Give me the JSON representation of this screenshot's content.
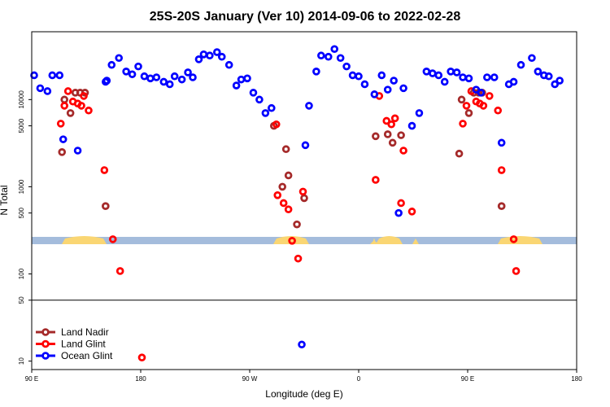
{
  "chart_data": {
    "type": "scatter",
    "title": "25S-20S January (Ver 10)   2014-09-06 to 2022-02-28",
    "xlabel": "Longitude (deg E)",
    "ylabel": "N Total",
    "x_ticks": [
      {
        "value": 90,
        "label": "90 E"
      },
      {
        "value": 180,
        "label": "180"
      },
      {
        "value": 270,
        "label": "90 W"
      },
      {
        "value": 360,
        "label": "0"
      },
      {
        "value": 450,
        "label": "90 E"
      },
      {
        "value": 540,
        "label": "180"
      }
    ],
    "y_ticks": [
      {
        "value": 10,
        "label": "10"
      },
      {
        "value": 50,
        "label": "50"
      },
      {
        "value": 100,
        "label": "100"
      },
      {
        "value": 500,
        "label": "500"
      },
      {
        "value": 1000,
        "label": "1000"
      },
      {
        "value": 5000,
        "label": "5000"
      },
      {
        "value": 10000,
        "label": "10000"
      }
    ],
    "xlim": [
      90,
      540
    ],
    "ylim": [
      8,
      60000
    ],
    "y_scale": "log",
    "reference_line": 50,
    "legend_position": "bottom-left",
    "series": [
      {
        "name": "Land Nadir",
        "color": "#a52a2a",
        "points": [
          [
            115,
            2500
          ],
          [
            117,
            10000
          ],
          [
            122,
            7000
          ],
          [
            126,
            12000
          ],
          [
            130,
            12000
          ],
          [
            134,
            12000
          ],
          [
            151,
            600
          ],
          [
            290,
            5000
          ],
          [
            297,
            1000
          ],
          [
            300,
            2700
          ],
          [
            302,
            1350
          ],
          [
            309,
            370
          ],
          [
            315,
            740
          ],
          [
            374,
            3800
          ],
          [
            384,
            4000
          ],
          [
            388,
            3200
          ],
          [
            395,
            3900
          ],
          [
            443,
            2400
          ],
          [
            445,
            10000
          ],
          [
            451,
            7000
          ],
          [
            455,
            12000
          ],
          [
            459,
            12000
          ],
          [
            462,
            12000
          ],
          [
            478,
            600
          ]
        ]
      },
      {
        "name": "Land Glint",
        "color": "#ff0000",
        "points": [
          [
            114,
            5300
          ],
          [
            117,
            8500
          ],
          [
            120,
            12500
          ],
          [
            124,
            9500
          ],
          [
            128,
            9000
          ],
          [
            131,
            8500
          ],
          [
            133,
            11000
          ],
          [
            137,
            7500
          ],
          [
            150,
            1550
          ],
          [
            157,
            250
          ],
          [
            163,
            108
          ],
          [
            181,
            11
          ],
          [
            292,
            5200
          ],
          [
            293,
            800
          ],
          [
            298,
            650
          ],
          [
            302,
            550
          ],
          [
            305,
            240
          ],
          [
            310,
            150
          ],
          [
            314,
            880
          ],
          [
            374,
            1200
          ],
          [
            377,
            11000
          ],
          [
            383,
            5700
          ],
          [
            387,
            5200
          ],
          [
            390,
            6100
          ],
          [
            395,
            650
          ],
          [
            397,
            2600
          ],
          [
            404,
            520
          ],
          [
            446,
            5300
          ],
          [
            449,
            8500
          ],
          [
            453,
            12500
          ],
          [
            457,
            9500
          ],
          [
            460,
            9000
          ],
          [
            463,
            8500
          ],
          [
            468,
            11000
          ],
          [
            475,
            7500
          ],
          [
            478,
            1550
          ],
          [
            488,
            250
          ],
          [
            490,
            108
          ]
        ]
      },
      {
        "name": "Ocean Glint",
        "color": "#0000ff",
        "points": [
          [
            92,
            19000
          ],
          [
            97,
            13500
          ],
          [
            103,
            12500
          ],
          [
            107,
            19000
          ],
          [
            113,
            19000
          ],
          [
            116,
            3500
          ],
          [
            128,
            2600
          ],
          [
            151,
            16000
          ],
          [
            152,
            16500
          ],
          [
            156,
            25000
          ],
          [
            162,
            30000
          ],
          [
            168,
            21000
          ],
          [
            173,
            19500
          ],
          [
            178,
            24000
          ],
          [
            183,
            18500
          ],
          [
            188,
            17500
          ],
          [
            193,
            18000
          ],
          [
            199,
            16000
          ],
          [
            204,
            15000
          ],
          [
            208,
            18500
          ],
          [
            214,
            17000
          ],
          [
            219,
            20500
          ],
          [
            223,
            18000
          ],
          [
            228,
            29000
          ],
          [
            232,
            33000
          ],
          [
            237,
            32000
          ],
          [
            243,
            35000
          ],
          [
            247,
            31000
          ],
          [
            253,
            25000
          ],
          [
            259,
            14500
          ],
          [
            263,
            17000
          ],
          [
            268,
            17500
          ],
          [
            273,
            12000
          ],
          [
            278,
            10000
          ],
          [
            283,
            7000
          ],
          [
            288,
            8000
          ],
          [
            313,
            15.5
          ],
          [
            316,
            3000
          ],
          [
            319,
            8500
          ],
          [
            325,
            21000
          ],
          [
            329,
            32000
          ],
          [
            335,
            31000
          ],
          [
            340,
            38000
          ],
          [
            345,
            30000
          ],
          [
            350,
            24000
          ],
          [
            355,
            19000
          ],
          [
            360,
            18500
          ],
          [
            365,
            15000
          ],
          [
            373,
            11500
          ],
          [
            379,
            19000
          ],
          [
            384,
            13000
          ],
          [
            389,
            16500
          ],
          [
            393,
            500
          ],
          [
            397,
            13500
          ],
          [
            404,
            5000
          ],
          [
            410,
            7000
          ],
          [
            416,
            21000
          ],
          [
            421,
            20000
          ],
          [
            426,
            19000
          ],
          [
            431,
            16000
          ],
          [
            436,
            21000
          ],
          [
            441,
            20500
          ],
          [
            446,
            18000
          ],
          [
            451,
            17500
          ],
          [
            457,
            13000
          ],
          [
            461,
            12000
          ],
          [
            466,
            18000
          ],
          [
            472,
            18000
          ],
          [
            478,
            3200
          ],
          [
            484,
            15000
          ],
          [
            488,
            16000
          ],
          [
            494,
            25000
          ],
          [
            503,
            30000
          ],
          [
            508,
            21000
          ],
          [
            513,
            19000
          ],
          [
            517,
            18500
          ],
          [
            522,
            15000
          ],
          [
            526,
            16500
          ]
        ]
      }
    ]
  },
  "annotations": {
    "land_band_label": ""
  }
}
